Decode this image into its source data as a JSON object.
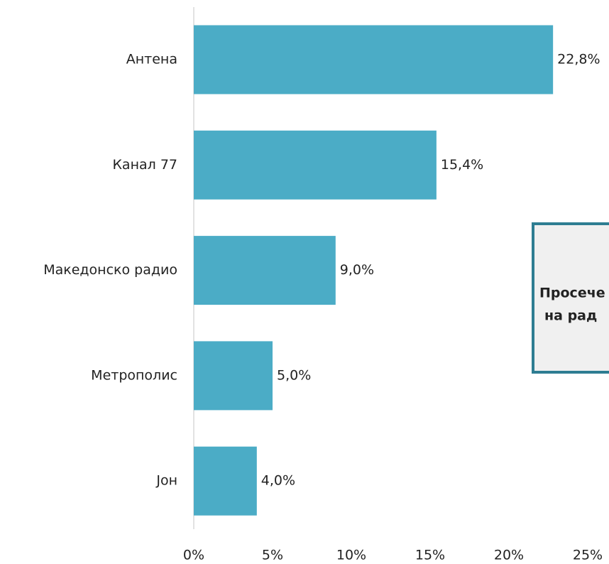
{
  "chart_data": {
    "type": "barh",
    "categories": [
      "Антена",
      "Канал 77",
      "Македонско радио",
      "Метрополис",
      "Јон"
    ],
    "values": [
      22.8,
      15.4,
      9.0,
      5.0,
      4.0
    ],
    "value_labels": [
      "22,8%",
      "15,4%",
      "9,0%",
      "5,0%",
      "4,0%"
    ],
    "color": "#4bacc6",
    "xlim": [
      0,
      25
    ],
    "xticks": [
      {
        "value": 0,
        "label": "0%"
      },
      {
        "value": 5,
        "label": "5%"
      },
      {
        "value": 10,
        "label": "10%"
      },
      {
        "value": 15,
        "label": "15%"
      },
      {
        "value": 20,
        "label": "20%"
      },
      {
        "value": 25,
        "label": "25%"
      }
    ],
    "annotation": [
      "Просече",
      "на рад"
    ]
  }
}
